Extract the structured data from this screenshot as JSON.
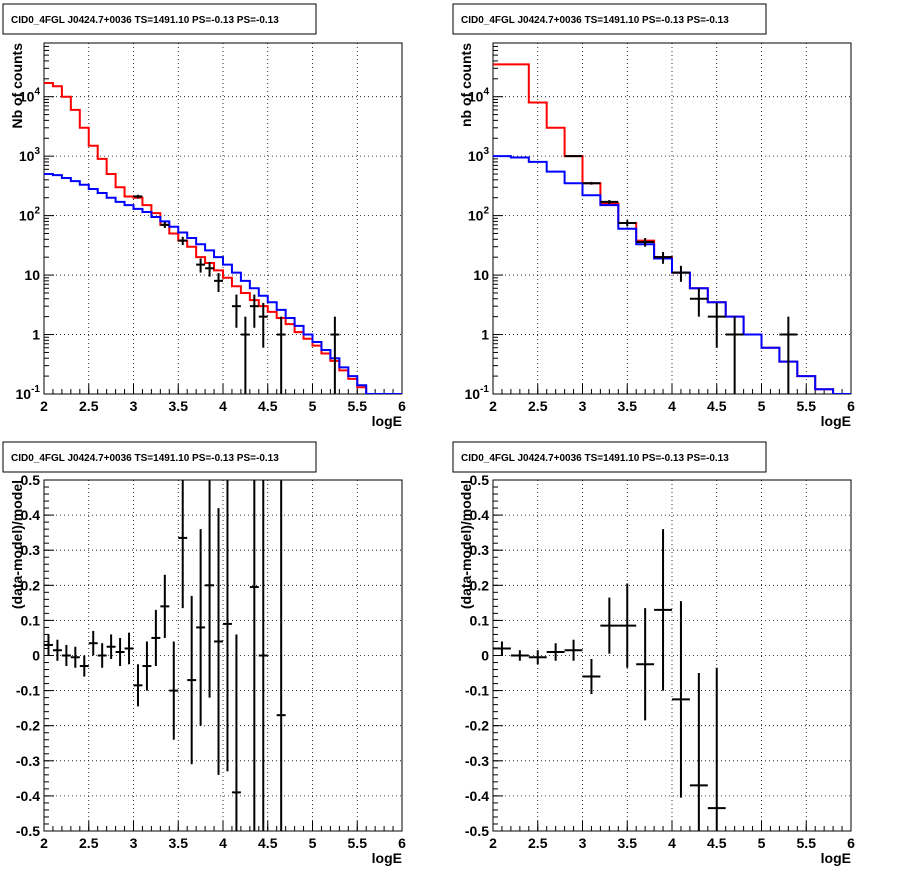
{
  "chart_data": [
    {
      "type": "line",
      "panel": "top-left",
      "title": "CID0_4FGL J0424.7+0036 TS=1491.10 PS=-0.13 PS=-0.13",
      "xlabel": "logE",
      "ylabel": "Nb of counts",
      "xlim": [
        2,
        6
      ],
      "ylim": [
        0.1,
        80000
      ],
      "yscale": "log",
      "grid": true,
      "x_ticks": [
        "2",
        "2.5",
        "3",
        "3.5",
        "4",
        "4.5",
        "5",
        "5.5",
        "6"
      ],
      "y_ticks": [
        {
          "v": 0.1,
          "base": "10",
          "exp": "-1"
        },
        {
          "v": 1,
          "label": "1"
        },
        {
          "v": 10,
          "label": "10"
        },
        {
          "v": 100,
          "base": "10",
          "exp": "2"
        },
        {
          "v": 1000,
          "base": "10",
          "exp": "3"
        },
        {
          "v": 10000,
          "base": "10",
          "exp": "4"
        }
      ],
      "bin_width": 0.1,
      "series": [
        {
          "color": "#ff0000",
          "kind": "step",
          "x": [
            2.0,
            2.1,
            2.2,
            2.3,
            2.4,
            2.5,
            2.6,
            2.7,
            2.8,
            2.9,
            3.0,
            3.1,
            3.2,
            3.3,
            3.4,
            3.5,
            3.6,
            3.7,
            3.8,
            3.9,
            4.0,
            4.1,
            4.2,
            4.3,
            4.4,
            4.5,
            4.6,
            4.7,
            4.8,
            4.9,
            5.0,
            5.1,
            5.2,
            5.3,
            5.4,
            5.5,
            5.6,
            5.7,
            5.8,
            5.9
          ],
          "values": [
            17000,
            15000,
            10000,
            6000,
            3000,
            1500,
            900,
            500,
            300,
            210,
            200,
            150,
            110,
            70,
            50,
            38,
            30,
            20,
            16,
            12,
            9,
            6.5,
            5,
            3.8,
            3,
            2.4,
            1.9,
            1.5,
            1.1,
            0.85,
            0.65,
            0.48,
            0.36,
            0.25,
            0.18,
            0.13,
            0.1,
            0.1,
            0.1,
            0.1
          ]
        },
        {
          "color": "#0000ff",
          "kind": "step",
          "x": [
            2.0,
            2.1,
            2.2,
            2.3,
            2.4,
            2.5,
            2.6,
            2.7,
            2.8,
            2.9,
            3.0,
            3.1,
            3.2,
            3.3,
            3.4,
            3.5,
            3.6,
            3.7,
            3.8,
            3.9,
            4.0,
            4.1,
            4.2,
            4.3,
            4.4,
            4.5,
            4.6,
            4.7,
            4.8,
            4.9,
            5.0,
            5.1,
            5.2,
            5.3,
            5.4,
            5.5,
            5.6,
            5.7,
            5.8,
            5.9
          ],
          "values": [
            500,
            480,
            430,
            380,
            330,
            280,
            240,
            200,
            170,
            150,
            130,
            115,
            95,
            80,
            65,
            52,
            42,
            33,
            26,
            20,
            15,
            11,
            8,
            6,
            4.5,
            3.5,
            2.6,
            1.9,
            1.4,
            1.0,
            0.75,
            0.55,
            0.4,
            0.28,
            0.2,
            0.14,
            0.1,
            0.1,
            0.1,
            0.1
          ]
        },
        {
          "color": "#000000",
          "kind": "errorbar",
          "xerr": 0.05,
          "x": [
            3.05,
            3.35,
            3.55,
            3.75,
            3.85,
            3.95,
            4.15,
            4.25,
            4.35,
            4.45,
            4.65,
            5.25
          ],
          "values": [
            210,
            70,
            38,
            15,
            13,
            8,
            3,
            1,
            3,
            2,
            1,
            1
          ],
          "err_lo": [
            14,
            8,
            6,
            4,
            3.6,
            2.8,
            1.7,
            1,
            1.7,
            1.4,
            1,
            1
          ],
          "err_hi": [
            14,
            8,
            6,
            4,
            3.6,
            2.8,
            1.7,
            1,
            1.7,
            1.4,
            1,
            1
          ]
        }
      ]
    },
    {
      "type": "line",
      "panel": "top-right",
      "title": "CID0_4FGL J0424.7+0036 TS=1491.10 PS=-0.13 PS=-0.13",
      "xlabel": "logE",
      "ylabel": "nb of counts",
      "xlim": [
        2,
        6
      ],
      "ylim": [
        0.1,
        80000
      ],
      "yscale": "log",
      "grid": true,
      "x_ticks": [
        "2",
        "2.5",
        "3",
        "3.5",
        "4",
        "4.5",
        "5",
        "5.5",
        "6"
      ],
      "y_ticks": [
        {
          "v": 0.1,
          "base": "10",
          "exp": "-1"
        },
        {
          "v": 1,
          "label": "1"
        },
        {
          "v": 10,
          "label": "10"
        },
        {
          "v": 100,
          "base": "10",
          "exp": "2"
        },
        {
          "v": 1000,
          "base": "10",
          "exp": "3"
        },
        {
          "v": 10000,
          "base": "10",
          "exp": "4"
        }
      ],
      "bin_width": 0.2,
      "series": [
        {
          "color": "#ff0000",
          "kind": "step",
          "x": [
            2.0,
            2.2,
            2.4,
            2.6,
            2.8,
            3.0,
            3.2,
            3.4,
            3.6,
            3.8,
            4.0,
            4.2,
            4.4,
            4.6,
            4.8,
            5.0,
            5.2,
            5.4,
            5.6,
            5.8
          ],
          "values": [
            35000,
            35000,
            8000,
            3000,
            1000,
            350,
            160,
            75,
            38,
            20,
            11,
            6,
            3.5,
            2,
            1,
            0.6,
            0.35,
            0.2,
            0.12,
            0.1
          ]
        },
        {
          "color": "#0000ff",
          "kind": "step",
          "x": [
            2.0,
            2.2,
            2.4,
            2.6,
            2.8,
            3.0,
            3.2,
            3.4,
            3.6,
            3.8,
            4.0,
            4.2,
            4.4,
            4.6,
            4.8,
            5.0,
            5.2,
            5.4,
            5.6,
            5.8
          ],
          "values": [
            1000,
            950,
            800,
            550,
            350,
            220,
            150,
            60,
            33,
            19,
            11,
            6,
            3.5,
            2,
            1,
            0.6,
            0.35,
            0.2,
            0.12,
            0.1
          ]
        },
        {
          "color": "#000000",
          "kind": "errorbar",
          "xerr": 0.1,
          "x": [
            2.9,
            3.1,
            3.3,
            3.5,
            3.7,
            3.9,
            4.1,
            4.3,
            4.5,
            4.7,
            5.3
          ],
          "values": [
            1000,
            350,
            170,
            75,
            36,
            20,
            11,
            4,
            2,
            1,
            1
          ],
          "err_lo": [
            32,
            19,
            13,
            9,
            6,
            4.5,
            3.3,
            2,
            1.4,
            1,
            1
          ],
          "err_hi": [
            32,
            19,
            13,
            9,
            6,
            4.5,
            3.3,
            2,
            1.4,
            1,
            1
          ]
        }
      ]
    },
    {
      "type": "scatter",
      "panel": "bottom-left",
      "title": "CID0_4FGL J0424.7+0036 TS=1491.10 PS=-0.13 PS=-0.13",
      "xlabel": "logE",
      "ylabel": "(data-model)/model",
      "xlim": [
        2,
        6
      ],
      "ylim": [
        -0.5,
        0.5
      ],
      "yscale": "linear",
      "grid": true,
      "x_ticks": [
        "2",
        "2.5",
        "3",
        "3.5",
        "4",
        "4.5",
        "5",
        "5.5",
        "6"
      ],
      "y_ticks": [
        {
          "v": -0.5,
          "label": "-0.5"
        },
        {
          "v": -0.4,
          "label": "-0.4"
        },
        {
          "v": -0.3,
          "label": "-0.3"
        },
        {
          "v": -0.2,
          "label": "-0.2"
        },
        {
          "v": -0.1,
          "label": "-0.1"
        },
        {
          "v": 0,
          "label": "0"
        },
        {
          "v": 0.1,
          "label": "0.1"
        },
        {
          "v": 0.2,
          "label": "0.2"
        },
        {
          "v": 0.3,
          "label": "0.3"
        },
        {
          "v": 0.4,
          "label": "0.4"
        },
        {
          "v": 0.5,
          "label": "0.5"
        }
      ],
      "series": [
        {
          "color": "#000000",
          "kind": "errorbar",
          "xerr": 0.05,
          "x": [
            2.05,
            2.15,
            2.25,
            2.35,
            2.45,
            2.55,
            2.65,
            2.75,
            2.85,
            2.95,
            3.05,
            3.15,
            3.25,
            3.35,
            3.45,
            3.55,
            3.65,
            3.75,
            3.85,
            3.95,
            4.05,
            4.15,
            4.35,
            4.45,
            4.65
          ],
          "values": [
            0.03,
            0.015,
            0.0,
            -0.005,
            -0.03,
            0.035,
            0.0,
            0.025,
            0.01,
            0.02,
            -0.085,
            -0.03,
            0.05,
            0.14,
            -0.1,
            0.335,
            -0.07,
            0.08,
            0.2,
            0.04,
            0.09,
            -0.39,
            0.195,
            0.0,
            -0.17
          ],
          "err_lo": [
            0.03,
            0.03,
            0.03,
            0.03,
            0.03,
            0.035,
            0.035,
            0.035,
            0.04,
            0.045,
            0.06,
            0.07,
            0.08,
            0.09,
            0.14,
            0.2,
            0.24,
            0.28,
            0.32,
            0.38,
            0.42,
            0.45,
            0.9,
            0.9,
            1.0
          ],
          "err_hi": [
            0.03,
            0.03,
            0.03,
            0.03,
            0.03,
            0.035,
            0.035,
            0.035,
            0.04,
            0.045,
            0.06,
            0.07,
            0.08,
            0.09,
            0.14,
            0.2,
            0.24,
            0.28,
            0.32,
            0.38,
            0.42,
            0.45,
            0.9,
            0.9,
            1.0
          ]
        }
      ]
    },
    {
      "type": "scatter",
      "panel": "bottom-right",
      "title": "CID0_4FGL J0424.7+0036 TS=1491.10 PS=-0.13 PS=-0.13",
      "xlabel": "logE",
      "ylabel": "(data-model)/model",
      "xlim": [
        2,
        6
      ],
      "ylim": [
        -0.5,
        0.5
      ],
      "yscale": "linear",
      "grid": true,
      "x_ticks": [
        "2",
        "2.5",
        "3",
        "3.5",
        "4",
        "4.5",
        "5",
        "5.5",
        "6"
      ],
      "y_ticks": [
        {
          "v": -0.5,
          "label": "-0.5"
        },
        {
          "v": -0.4,
          "label": "-0.4"
        },
        {
          "v": -0.3,
          "label": "-0.3"
        },
        {
          "v": -0.2,
          "label": "-0.2"
        },
        {
          "v": -0.1,
          "label": "-0.1"
        },
        {
          "v": 0,
          "label": "0"
        },
        {
          "v": 0.1,
          "label": "0.1"
        },
        {
          "v": 0.2,
          "label": "0.2"
        },
        {
          "v": 0.3,
          "label": "0.3"
        },
        {
          "v": 0.4,
          "label": "0.4"
        },
        {
          "v": 0.5,
          "label": "0.5"
        }
      ],
      "series": [
        {
          "color": "#000000",
          "kind": "errorbar",
          "xerr": 0.1,
          "x": [
            2.1,
            2.3,
            2.5,
            2.7,
            2.9,
            3.1,
            3.3,
            3.5,
            3.7,
            3.9,
            4.1,
            4.3,
            4.5
          ],
          "values": [
            0.02,
            0.0,
            -0.005,
            0.01,
            0.015,
            -0.06,
            0.085,
            0.085,
            -0.025,
            0.13,
            -0.125,
            -0.37,
            -0.435
          ],
          "err_lo": [
            0.02,
            0.015,
            0.02,
            0.025,
            0.03,
            0.05,
            0.08,
            0.12,
            0.16,
            0.23,
            0.28,
            0.32,
            0.4
          ],
          "err_hi": [
            0.02,
            0.015,
            0.02,
            0.025,
            0.03,
            0.05,
            0.08,
            0.12,
            0.16,
            0.23,
            0.28,
            0.32,
            0.4
          ]
        }
      ]
    }
  ]
}
